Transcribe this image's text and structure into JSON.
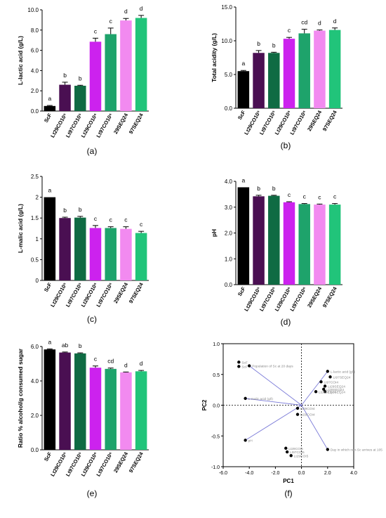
{
  "categories": [
    "ScF",
    "Lt29CO10⁵",
    "Lt97CO10⁵",
    "Lt29CO10⁶",
    "Lt97CO10⁶",
    "29SEQ24",
    "97SEQ24"
  ],
  "bar_colors": [
    "#000000",
    "#4a0f52",
    "#0f6b43",
    "#cc22ee",
    "#1ea36b",
    "#f28af0",
    "#21c47a"
  ],
  "chart_data": [
    {
      "type": "bar",
      "panel": "(a)",
      "ylabel": "L-lactic acid (g/L)",
      "ylim": [
        0,
        10
      ],
      "yticks": [
        0.0,
        2.0,
        4.0,
        6.0,
        8.0,
        10.0
      ],
      "tick_decimals": 1,
      "values": [
        0.5,
        2.6,
        2.5,
        6.85,
        7.6,
        8.95,
        9.2
      ],
      "errors": [
        0.05,
        0.25,
        0.05,
        0.35,
        0.6,
        0.2,
        0.25
      ],
      "letters": [
        "a",
        "b",
        "b",
        "c",
        "c",
        "d",
        "d"
      ]
    },
    {
      "type": "bar",
      "panel": "(b)",
      "ylabel": "Total acidity (g/L)",
      "ylim": [
        0,
        15
      ],
      "yticks": [
        0.0,
        5.0,
        10.0,
        15.0
      ],
      "tick_decimals": 1,
      "values": [
        5.5,
        8.2,
        8.2,
        10.3,
        11.1,
        11.5,
        11.6
      ],
      "errors": [
        0.1,
        0.35,
        0.1,
        0.2,
        0.6,
        0.1,
        0.3
      ],
      "letters": [
        "a",
        "b",
        "b",
        "c",
        "cd",
        "d",
        "d"
      ]
    },
    {
      "type": "bar",
      "panel": "(c)",
      "ylabel": "L-malic acid (g/L)",
      "ylim": [
        0,
        2.5
      ],
      "yticks": [
        0,
        0.5,
        1,
        1.5,
        2,
        2.5
      ],
      "tick_decimals": -1,
      "values": [
        2.0,
        1.5,
        1.51,
        1.26,
        1.26,
        1.24,
        1.14
      ],
      "errors": [
        0.0,
        0.02,
        0.03,
        0.06,
        0.03,
        0.05,
        0.04
      ],
      "letters": [
        "a",
        "b",
        "b",
        "c",
        "c",
        "c",
        "c"
      ]
    },
    {
      "type": "bar",
      "panel": "(d)",
      "ylabel": "pH",
      "ylim": [
        0,
        4
      ],
      "yticks": [
        0.0,
        1.0,
        2.0,
        3.0,
        4.0
      ],
      "tick_decimals": 1,
      "values": [
        3.77,
        3.42,
        3.44,
        3.19,
        3.12,
        3.1,
        3.1
      ],
      "errors": [
        0.0,
        0.04,
        0.02,
        0.02,
        0.02,
        0.02,
        0.04
      ],
      "letters": [
        "a",
        "b",
        "b",
        "c",
        "c",
        "c",
        "c"
      ]
    },
    {
      "type": "bar",
      "panel": "(e)",
      "ylabel": "Ratio % alcohol/g consumed sugar",
      "ylim": [
        0,
        6
      ],
      "yticks": [
        0.0,
        2.0,
        4.0,
        6.0
      ],
      "tick_decimals": 1,
      "values": [
        5.83,
        5.65,
        5.6,
        4.77,
        4.7,
        4.5,
        4.56
      ],
      "errors": [
        0.03,
        0.03,
        0.03,
        0.1,
        0.05,
        0.02,
        0.05
      ],
      "letters": [
        "a",
        "ab",
        "b",
        "c",
        "cd",
        "d",
        "d"
      ]
    },
    {
      "type": "scatter",
      "panel": "(f)",
      "xlabel": "PC1",
      "ylabel": "PC2",
      "xlim": [
        -6,
        4
      ],
      "ylim": [
        -1,
        1
      ],
      "xticks": [
        -6.0,
        -4.0,
        -2.0,
        0.0,
        2.0,
        4.0
      ],
      "yticks": [
        -1.0,
        -0.5,
        0.0,
        0.5,
        1.0
      ],
      "tick_decimals": 1,
      "loadings": [
        {
          "label": "Population of Sc at 20 days",
          "x": -4.0,
          "y": 0.64
        },
        {
          "label": "L-malic acid (g/l)",
          "x": -4.3,
          "y": 0.11
        },
        {
          "label": "pH",
          "x": -4.3,
          "y": -0.57
        },
        {
          "label": "L-lactic acid (g/l)",
          "x": 2.0,
          "y": 0.55
        },
        {
          "label": "Day in which non-Sc arrives at 105",
          "x": 2.0,
          "y": -0.72
        }
      ],
      "points": [
        {
          "label": "ScF",
          "x": -4.8,
          "y": 0.7
        },
        {
          "label": "ScF",
          "x": -4.8,
          "y": 0.63
        },
        {
          "label": "Lt97SEQ24",
          "x": 2.2,
          "y": 0.46
        },
        {
          "label": "Lt97COI4",
          "x": 1.5,
          "y": 0.38
        },
        {
          "label": "Lt29SEQ24",
          "x": 1.8,
          "y": 0.31
        },
        {
          "label": "Lt29SEQ24",
          "x": 1.7,
          "y": 0.26
        },
        {
          "label": "Lt97SEQ24",
          "x": 1.8,
          "y": 0.22
        },
        {
          "label": "Lt29SEQ24",
          "x": 1.1,
          "y": 0.22
        },
        {
          "label": "Lt29COI4",
          "x": -0.3,
          "y": -0.05
        },
        {
          "label": "Lt29COI4",
          "x": -0.3,
          "y": -0.15
        },
        {
          "label": "Lt29COI5",
          "x": -1.2,
          "y": -0.7
        },
        {
          "label": "Lt97COI5",
          "x": -1.1,
          "y": -0.76
        },
        {
          "label": "Lt29COI5",
          "x": -0.8,
          "y": -0.82
        }
      ]
    }
  ]
}
